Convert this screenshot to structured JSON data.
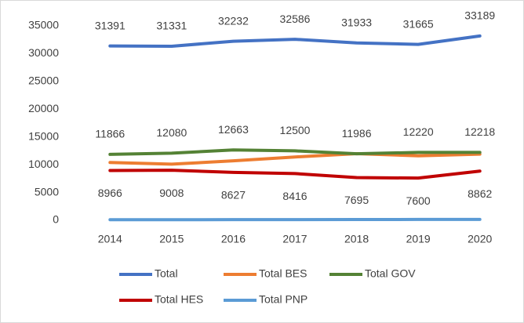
{
  "chart_data": {
    "type": "line",
    "categories": [
      "2014",
      "2015",
      "2016",
      "2017",
      "2018",
      "2019",
      "2020"
    ],
    "series": [
      {
        "name": "Total",
        "color": "#4472c4",
        "values": [
          31391,
          31331,
          32232,
          32586,
          31933,
          31665,
          33189
        ],
        "show_labels": true,
        "label_position": "above"
      },
      {
        "name": "Total BES",
        "color": "#ed7d31",
        "values": [
          10400,
          10100,
          10700,
          11400,
          12000,
          11600,
          11900
        ],
        "show_labels": false
      },
      {
        "name": "Total GOV",
        "color": "#548235",
        "values": [
          11866,
          12080,
          12663,
          12500,
          11986,
          12220,
          12218
        ],
        "show_labels": true,
        "label_position": "above"
      },
      {
        "name": "Total HES",
        "color": "#c00000",
        "values": [
          8966,
          9008,
          8627,
          8416,
          7695,
          7600,
          8862
        ],
        "show_labels": true,
        "label_position": "below"
      },
      {
        "name": "Total PNP",
        "color": "#5b9bd5",
        "values": [
          100,
          110,
          120,
          130,
          140,
          150,
          160
        ],
        "show_labels": false
      }
    ],
    "ylim": [
      0,
      35000
    ],
    "yticks": [
      0,
      5000,
      10000,
      15000,
      20000,
      25000,
      30000,
      35000
    ],
    "grid": false,
    "legend": "bottom"
  }
}
